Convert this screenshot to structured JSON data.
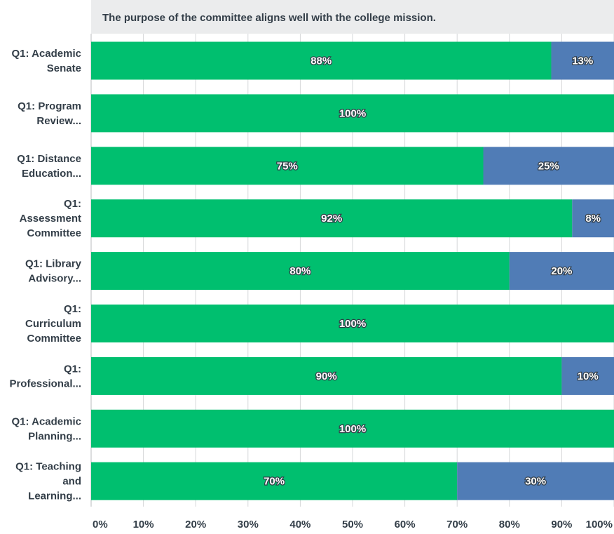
{
  "chart_data": {
    "type": "bar",
    "orientation": "horizontal",
    "stacked": true,
    "title": "The purpose of the committee aligns well with the college mission.",
    "categories": [
      [
        "Q1: Academic",
        "Senate"
      ],
      [
        "Q1: Program",
        "Review..."
      ],
      [
        "Q1: Distance",
        "Education..."
      ],
      [
        "Q1:",
        "Assessment",
        "Committee"
      ],
      [
        "Q1: Library",
        "Advisory..."
      ],
      [
        "Q1:",
        "Curriculum",
        "Committee"
      ],
      [
        "Q1:",
        "Professional..."
      ],
      [
        "Q1: Academic",
        "Planning..."
      ],
      [
        "Q1: Teaching",
        "and",
        "Learning..."
      ]
    ],
    "series": [
      {
        "values": [
          88,
          100,
          75,
          92,
          80,
          100,
          90,
          100,
          70
        ],
        "color": "#00bf6f"
      },
      {
        "values": [
          13,
          0,
          25,
          8,
          20,
          0,
          10,
          0,
          30
        ],
        "color": "#507cb6"
      }
    ],
    "xlim": [
      0,
      100
    ],
    "x_ticks": [
      "0%",
      "10%",
      "20%",
      "30%",
      "40%",
      "50%",
      "60%",
      "70%",
      "80%",
      "90%",
      "100%"
    ],
    "value_suffix": "%",
    "grid": true,
    "legend": "none"
  },
  "colors": {
    "title_band": "#ebeced",
    "grid": "#d6d7d9",
    "axis_text": "#333e48"
  }
}
